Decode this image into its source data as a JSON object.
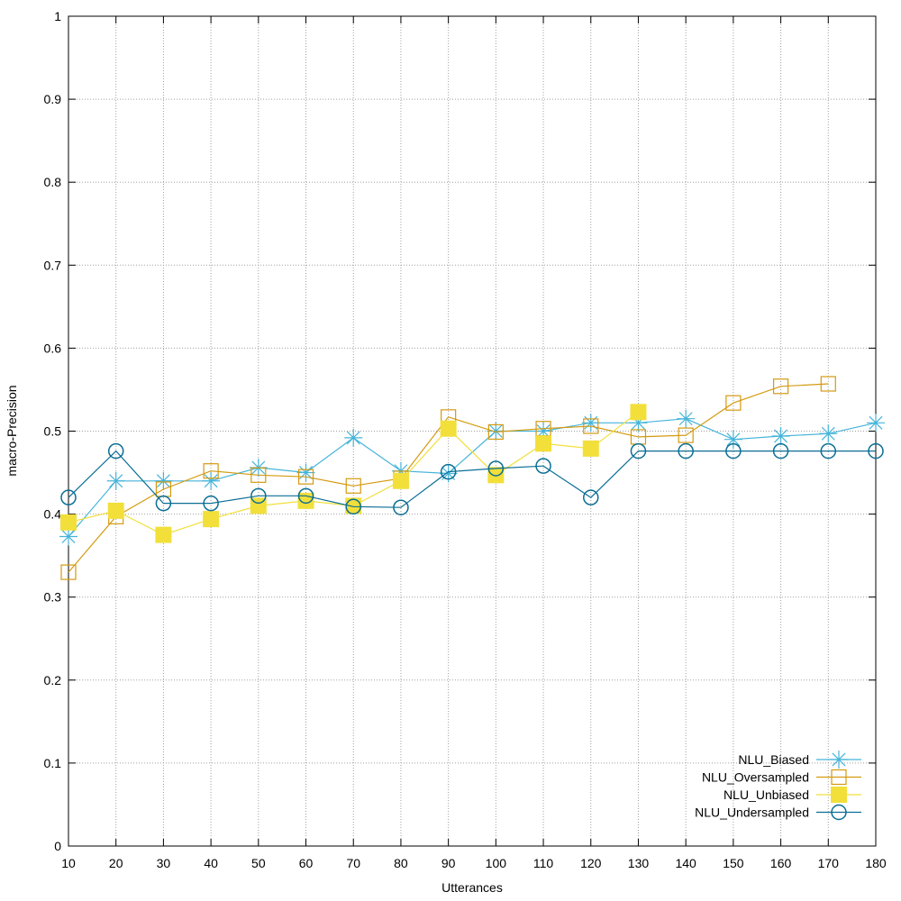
{
  "chart_data": {
    "type": "line",
    "xlabel": "Utterances",
    "ylabel": "macro-Precision",
    "xlim": [
      10,
      180
    ],
    "ylim": [
      0,
      1
    ],
    "x_ticks": [
      10,
      20,
      30,
      40,
      50,
      60,
      70,
      80,
      90,
      100,
      110,
      120,
      130,
      140,
      150,
      160,
      170,
      180
    ],
    "y_ticks": [
      0,
      0.1,
      0.2,
      0.3,
      0.4,
      0.5,
      0.6,
      0.7,
      0.8,
      0.9,
      1
    ],
    "grid": true,
    "legend_position": "bottom-right",
    "series": [
      {
        "name": "NLU_Biased",
        "color": "#45b4d9",
        "marker": "star",
        "x": [
          10,
          20,
          30,
          40,
          50,
          60,
          70,
          80,
          90,
          100,
          110,
          120,
          130,
          140,
          150,
          160,
          170,
          180
        ],
        "values": [
          0.373,
          0.44,
          0.44,
          0.44,
          0.456,
          0.45,
          0.492,
          0.452,
          0.449,
          0.5,
          0.5,
          0.51,
          0.51,
          0.515,
          0.49,
          0.494,
          0.497,
          0.51
        ]
      },
      {
        "name": "NLU_Oversampled",
        "color": "#d49a10",
        "marker": "square-open",
        "x": [
          10,
          20,
          30,
          40,
          50,
          60,
          70,
          80,
          90,
          100,
          110,
          120,
          130,
          140,
          150,
          160,
          170
        ],
        "values": [
          0.33,
          0.397,
          0.43,
          0.452,
          0.447,
          0.445,
          0.434,
          0.443,
          0.517,
          0.499,
          0.503,
          0.506,
          0.493,
          0.495,
          0.534,
          0.554,
          0.557
        ]
      },
      {
        "name": "NLU_Unbiased",
        "color": "#f2df3a",
        "marker": "square-filled",
        "x": [
          10,
          20,
          30,
          40,
          50,
          60,
          70,
          80,
          90,
          100,
          110,
          120,
          130
        ],
        "values": [
          0.39,
          0.404,
          0.375,
          0.394,
          0.41,
          0.416,
          0.41,
          0.44,
          0.503,
          0.447,
          0.485,
          0.479,
          0.523
        ]
      },
      {
        "name": "NLU_Undersampled",
        "color": "#0a6e94",
        "marker": "circle-open",
        "x": [
          10,
          20,
          30,
          40,
          50,
          60,
          70,
          80,
          90,
          100,
          110,
          120,
          130,
          140,
          150,
          160,
          170,
          180
        ],
        "values": [
          0.42,
          0.476,
          0.413,
          0.413,
          0.422,
          0.422,
          0.409,
          0.408,
          0.451,
          0.455,
          0.458,
          0.42,
          0.476,
          0.476,
          0.476,
          0.476,
          0.476,
          0.476
        ]
      }
    ]
  }
}
